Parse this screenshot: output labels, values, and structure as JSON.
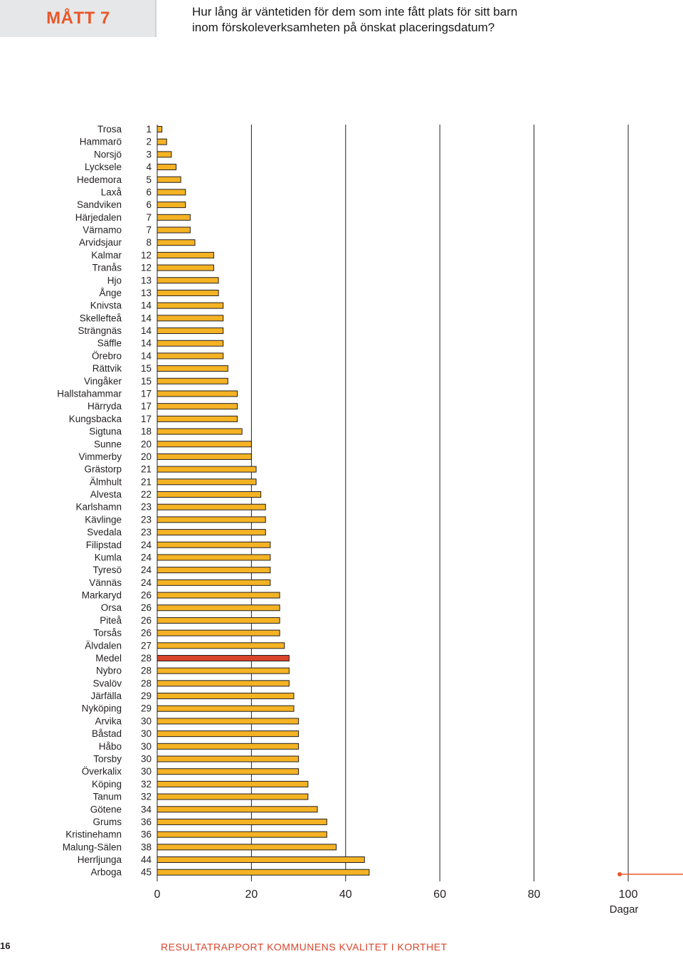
{
  "header": {
    "badge": "MÅTT 7",
    "question_line1": "Hur lång är väntetiden  för dem som inte fått plats för sitt barn",
    "question_line2": "inom förskoleverksamheten på önskat placeringsdatum?"
  },
  "footer": {
    "page_number": "16",
    "report_title": "RESULTATRAPPORT KOMMUNENS KVALITET I KORTHET"
  },
  "colors": {
    "bar": "#f5b324",
    "bar_highlight": "#d9442b",
    "bar_stroke": "#231f20",
    "accent": "#e8582a",
    "grid": "#231f20"
  },
  "chart_data": {
    "type": "bar",
    "orientation": "horizontal",
    "xlabel": "Dagar",
    "xlim": [
      0,
      100
    ],
    "xticks": [
      0,
      20,
      40,
      60,
      80,
      100
    ],
    "grid": "vertical",
    "highlighted_category": "Medel",
    "categories": [
      "Trosa",
      "Hammarö",
      "Norsjö",
      "Lycksele",
      "Hedemora",
      "Laxå",
      "Sandviken",
      "Härjedalen",
      "Värnamo",
      "Arvidsjaur",
      "Kalmar",
      "Tranås",
      "Hjo",
      "Ånge",
      "Knivsta",
      "Skellefteå",
      "Strängnäs",
      "Säffle",
      "Örebro",
      "Rättvik",
      "Vingåker",
      "Hallstahammar",
      "Härryda",
      "Kungsbacka",
      "Sigtuna",
      "Sunne",
      "Vimmerby",
      "Grästorp",
      "Älmhult",
      "Alvesta",
      "Karlshamn",
      "Kävlinge",
      "Svedala",
      "Filipstad",
      "Kumla",
      "Tyresö",
      "Vännäs",
      "Markaryd",
      "Orsa",
      "Piteå",
      "Torsås",
      "Älvdalen",
      "Medel",
      "Nybro",
      "Svalöv",
      "Järfälla",
      "Nyköping",
      "Arvika",
      "Båstad",
      "Håbo",
      "Torsby",
      "Överkalix",
      "Köping",
      "Tanum",
      "Götene",
      "Grums",
      "Kristinehamn",
      "Malung-Sälen",
      "Herrljunga",
      "Arboga"
    ],
    "values": [
      1,
      2,
      3,
      4,
      5,
      6,
      6,
      7,
      7,
      8,
      12,
      12,
      13,
      13,
      14,
      14,
      14,
      14,
      14,
      15,
      15,
      17,
      17,
      17,
      18,
      20,
      20,
      21,
      21,
      22,
      23,
      23,
      23,
      24,
      24,
      24,
      24,
      26,
      26,
      26,
      26,
      27,
      28,
      28,
      28,
      29,
      29,
      30,
      30,
      30,
      30,
      30,
      32,
      32,
      34,
      36,
      36,
      38,
      44,
      45
    ]
  }
}
